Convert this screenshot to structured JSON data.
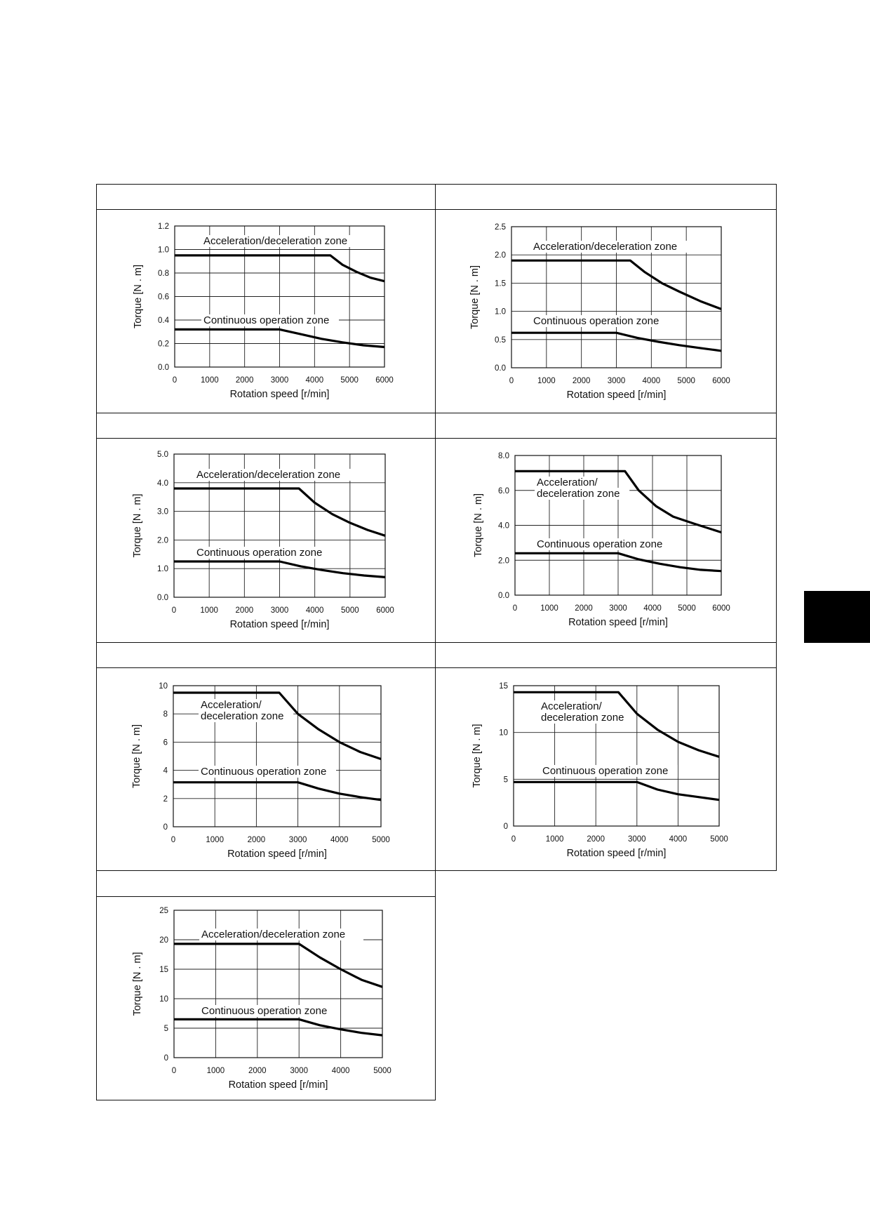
{
  "chart_data": [
    {
      "type": "line",
      "xlabel": "Rotation speed [r/min]",
      "ylabel": "Torque [N . m]",
      "xlim": [
        0,
        6000
      ],
      "ylim": [
        0,
        1.2
      ],
      "xticks": [
        0,
        1000,
        2000,
        3000,
        4000,
        5000,
        6000
      ],
      "xtick_labels": [
        "0",
        "1000",
        "2000",
        "3000",
        "4000",
        "5000",
        "6000"
      ],
      "yticks": [
        0,
        0.2,
        0.4,
        0.6,
        0.8,
        1.0,
        1.2
      ],
      "ytick_labels": [
        "0.0",
        "0.2",
        "0.4",
        "0.6",
        "0.8",
        "1.0",
        "1.2"
      ],
      "grid": true,
      "annotations": [
        {
          "id": "accel",
          "lines": [
            "Acceleration/deceleration zone"
          ]
        },
        {
          "id": "cont",
          "lines": [
            "Continuous operation zone"
          ]
        }
      ],
      "series": [
        {
          "id": "accel",
          "x": [
            0,
            4450,
            4800,
            5200,
            5600,
            6000
          ],
          "y": [
            0.95,
            0.95,
            0.87,
            0.81,
            0.76,
            0.73
          ]
        },
        {
          "id": "cont",
          "x": [
            0,
            3000,
            3600,
            4200,
            4800,
            5400,
            6000
          ],
          "y": [
            0.32,
            0.32,
            0.28,
            0.24,
            0.21,
            0.185,
            0.17
          ]
        }
      ]
    },
    {
      "type": "line",
      "xlabel": "Rotation speed [r/min]",
      "ylabel": "Torque [N . m]",
      "xlim": [
        0,
        6000
      ],
      "ylim": [
        0,
        2.5
      ],
      "xticks": [
        0,
        1000,
        2000,
        3000,
        4000,
        5000,
        6000
      ],
      "xtick_labels": [
        "0",
        "1000",
        "2000",
        "3000",
        "4000",
        "5000",
        "6000"
      ],
      "yticks": [
        0,
        0.5,
        1.0,
        1.5,
        2.0,
        2.5
      ],
      "ytick_labels": [
        "0.0",
        "0.5",
        "1.0",
        "1.5",
        "2.0",
        "2.5"
      ],
      "grid": true,
      "annotations": [
        {
          "id": "accel",
          "lines": [
            "Acceleration/deceleration zone"
          ]
        },
        {
          "id": "cont",
          "lines": [
            "Continuous operation zone"
          ]
        }
      ],
      "series": [
        {
          "id": "accel",
          "x": [
            0,
            3400,
            3800,
            4300,
            4800,
            5400,
            6000
          ],
          "y": [
            1.9,
            1.9,
            1.7,
            1.5,
            1.35,
            1.18,
            1.04
          ]
        },
        {
          "id": "cont",
          "x": [
            0,
            3000,
            3600,
            4200,
            4800,
            5400,
            6000
          ],
          "y": [
            0.62,
            0.62,
            0.53,
            0.46,
            0.4,
            0.35,
            0.3
          ]
        }
      ]
    },
    {
      "type": "line",
      "xlabel": "Rotation speed [r/min]",
      "ylabel": "Torque [N . m]",
      "xlim": [
        0,
        6000
      ],
      "ylim": [
        0,
        5.0
      ],
      "xticks": [
        0,
        1000,
        2000,
        3000,
        4000,
        5000,
        6000
      ],
      "xtick_labels": [
        "0",
        "1000",
        "2000",
        "3000",
        "4000",
        "5000",
        "6000"
      ],
      "yticks": [
        0,
        1,
        2,
        3,
        4,
        5
      ],
      "ytick_labels": [
        "0.0",
        "1.0",
        "2.0",
        "3.0",
        "4.0",
        "5.0"
      ],
      "grid": true,
      "annotations": [
        {
          "id": "accel",
          "lines": [
            "Acceleration/deceleration zone"
          ]
        },
        {
          "id": "cont",
          "lines": [
            "Continuous operation zone"
          ]
        }
      ],
      "series": [
        {
          "id": "accel",
          "x": [
            0,
            3550,
            4000,
            4500,
            5000,
            5500,
            6000
          ],
          "y": [
            3.8,
            3.8,
            3.3,
            2.9,
            2.6,
            2.35,
            2.15
          ]
        },
        {
          "id": "cont",
          "x": [
            0,
            3000,
            3600,
            4200,
            4800,
            5400,
            6000
          ],
          "y": [
            1.25,
            1.25,
            1.08,
            0.95,
            0.84,
            0.76,
            0.7
          ]
        }
      ]
    },
    {
      "type": "line",
      "xlabel": "Rotation speed [r/min]",
      "ylabel": "Torque [N . m]",
      "xlim": [
        0,
        6000
      ],
      "ylim": [
        0,
        8.0
      ],
      "xticks": [
        0,
        1000,
        2000,
        3000,
        4000,
        5000,
        6000
      ],
      "xtick_labels": [
        "0",
        "1000",
        "2000",
        "3000",
        "4000",
        "5000",
        "6000"
      ],
      "yticks": [
        0,
        2,
        4,
        6,
        8
      ],
      "ytick_labels": [
        "0.0",
        "2.0",
        "4.0",
        "6.0",
        "8.0"
      ],
      "grid": true,
      "annotations": [
        {
          "id": "accel",
          "lines": [
            "Acceleration/",
            "deceleration zone"
          ]
        },
        {
          "id": "cont",
          "lines": [
            "Continuous operation zone"
          ]
        }
      ],
      "series": [
        {
          "id": "accel",
          "x": [
            0,
            3200,
            3600,
            4100,
            4600,
            5200,
            6000
          ],
          "y": [
            7.1,
            7.1,
            6.0,
            5.1,
            4.5,
            4.1,
            3.6
          ]
        },
        {
          "id": "cont",
          "x": [
            0,
            3000,
            3600,
            4200,
            4800,
            5400,
            6000
          ],
          "y": [
            2.4,
            2.4,
            2.05,
            1.8,
            1.6,
            1.45,
            1.38
          ]
        }
      ]
    },
    {
      "type": "line",
      "xlabel": "Rotation speed [r/min]",
      "ylabel": "Torque [N . m]",
      "xlim": [
        0,
        5000
      ],
      "ylim": [
        0,
        10
      ],
      "xticks": [
        0,
        1000,
        2000,
        3000,
        4000,
        5000
      ],
      "xtick_labels": [
        "0",
        "1000",
        "2000",
        "3000",
        "4000",
        "5000"
      ],
      "yticks": [
        0,
        2,
        4,
        6,
        8,
        10
      ],
      "ytick_labels": [
        "0",
        "2",
        "4",
        "6",
        "8",
        "10"
      ],
      "grid": true,
      "annotations": [
        {
          "id": "accel",
          "lines": [
            "Acceleration/",
            "deceleration zone"
          ]
        },
        {
          "id": "cont",
          "lines": [
            "Continuous operation zone"
          ]
        }
      ],
      "series": [
        {
          "id": "accel",
          "x": [
            0,
            2550,
            3000,
            3500,
            4000,
            4500,
            5000
          ],
          "y": [
            9.5,
            9.5,
            8.0,
            6.9,
            6.0,
            5.3,
            4.8
          ]
        },
        {
          "id": "cont",
          "x": [
            0,
            3000,
            3500,
            4000,
            4500,
            5000
          ],
          "y": [
            3.15,
            3.15,
            2.7,
            2.35,
            2.1,
            1.9
          ]
        }
      ]
    },
    {
      "type": "line",
      "xlabel": "Rotation speed [r/min]",
      "ylabel": "Torque [N . m]",
      "xlim": [
        0,
        5000
      ],
      "ylim": [
        0,
        15
      ],
      "xticks": [
        0,
        1000,
        2000,
        3000,
        4000,
        5000
      ],
      "xtick_labels": [
        "0",
        "1000",
        "2000",
        "3000",
        "4000",
        "5000"
      ],
      "yticks": [
        0,
        5,
        10,
        15
      ],
      "ytick_labels": [
        "0",
        "5",
        "10",
        "15"
      ],
      "grid": true,
      "annotations": [
        {
          "id": "accel",
          "lines": [
            "Acceleration/",
            "deceleration zone"
          ]
        },
        {
          "id": "cont",
          "lines": [
            "Continuous operation zone"
          ]
        }
      ],
      "series": [
        {
          "id": "accel",
          "x": [
            0,
            2550,
            3000,
            3500,
            4000,
            4500,
            5000
          ],
          "y": [
            14.3,
            14.3,
            12.0,
            10.3,
            9.0,
            8.1,
            7.4
          ]
        },
        {
          "id": "cont",
          "x": [
            0,
            3000,
            3500,
            4000,
            4500,
            5000
          ],
          "y": [
            4.7,
            4.7,
            3.9,
            3.4,
            3.1,
            2.8
          ]
        }
      ]
    },
    {
      "type": "line",
      "xlabel": "Rotation speed [r/min]",
      "ylabel": "Torque [N . m]",
      "xlim": [
        0,
        5000
      ],
      "ylim": [
        0,
        25
      ],
      "xticks": [
        0,
        1000,
        2000,
        3000,
        4000,
        5000
      ],
      "xtick_labels": [
        "0",
        "1000",
        "2000",
        "3000",
        "4000",
        "5000"
      ],
      "yticks": [
        0,
        5,
        10,
        15,
        20,
        25
      ],
      "ytick_labels": [
        "0",
        "5",
        "10",
        "15",
        "20",
        "25"
      ],
      "grid": true,
      "annotations": [
        {
          "id": "accel",
          "lines": [
            "Acceleration/deceleration zone"
          ]
        },
        {
          "id": "cont",
          "lines": [
            "Continuous operation zone"
          ]
        }
      ],
      "series": [
        {
          "id": "accel",
          "x": [
            0,
            3000,
            3500,
            4000,
            4500,
            5000
          ],
          "y": [
            19.3,
            19.3,
            17.0,
            15.0,
            13.2,
            12.0
          ]
        },
        {
          "id": "cont",
          "x": [
            0,
            3000,
            3500,
            4000,
            4500,
            5000
          ],
          "y": [
            6.5,
            6.5,
            5.5,
            4.8,
            4.2,
            3.8
          ]
        }
      ]
    }
  ]
}
